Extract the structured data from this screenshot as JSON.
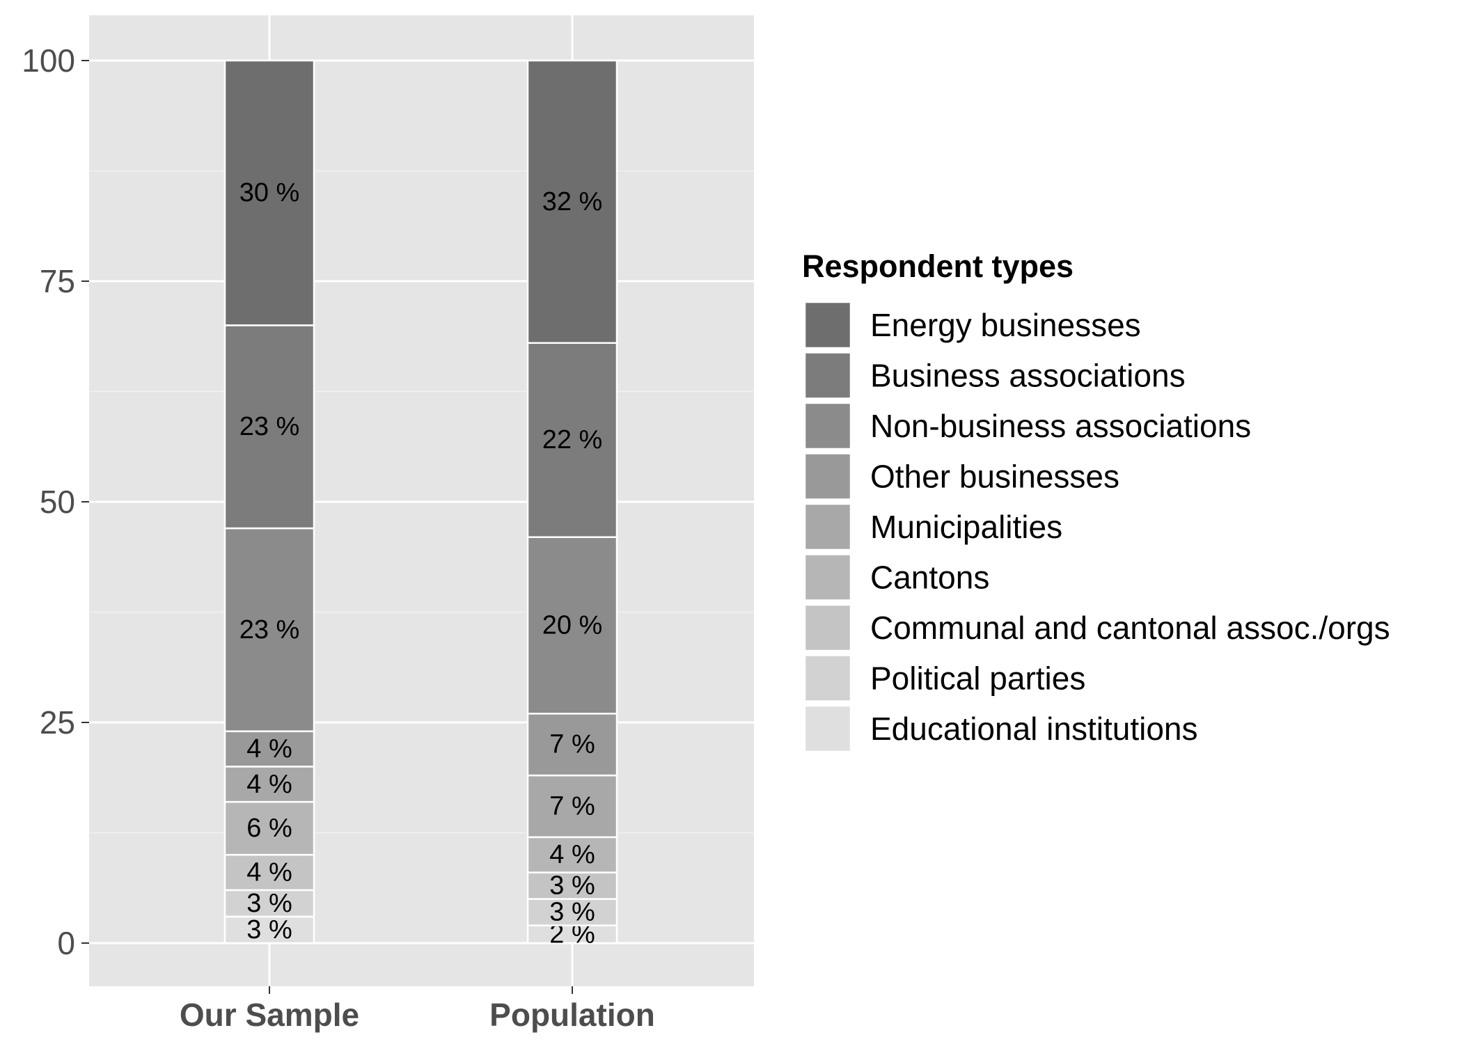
{
  "chart_data": {
    "type": "bar",
    "stacked": true,
    "categories": [
      "Our Sample",
      "Population"
    ],
    "y_ticks": [
      0,
      25,
      50,
      75,
      100
    ],
    "ylim": [
      -5,
      105
    ],
    "legend_title": "Respondent types",
    "legend_placement": "right",
    "grid": true,
    "series": [
      {
        "name": "Energy businesses",
        "color": "#6e6e6e",
        "values": [
          30,
          32
        ],
        "labels": [
          "30 %",
          "32 %"
        ]
      },
      {
        "name": "Business associations",
        "color": "#7c7c7c",
        "values": [
          23,
          22
        ],
        "labels": [
          "23 %",
          "22 %"
        ]
      },
      {
        "name": "Non-business associations",
        "color": "#8b8b8b",
        "values": [
          23,
          20
        ],
        "labels": [
          "23 %",
          "20 %"
        ]
      },
      {
        "name": "Other businesses",
        "color": "#999999",
        "values": [
          4,
          7
        ],
        "labels": [
          "4 %",
          "7 %"
        ]
      },
      {
        "name": "Municipalities",
        "color": "#a8a8a8",
        "values": [
          4,
          7
        ],
        "labels": [
          "4 %",
          "7 %"
        ]
      },
      {
        "name": "Cantons",
        "color": "#b6b6b6",
        "values": [
          6,
          4
        ],
        "labels": [
          "6 %",
          "4 %"
        ]
      },
      {
        "name": "Communal and cantonal assoc./orgs",
        "color": "#c4c4c4",
        "values": [
          4,
          3
        ],
        "labels": [
          "4 %",
          "3 %"
        ]
      },
      {
        "name": "Political parties",
        "color": "#d2d2d2",
        "values": [
          3,
          3
        ],
        "labels": [
          "3 %",
          "3 %"
        ]
      },
      {
        "name": "Educational institutions",
        "color": "#dfdfdf",
        "values": [
          3,
          2
        ],
        "labels": [
          "3 %",
          "2 %"
        ]
      }
    ]
  }
}
